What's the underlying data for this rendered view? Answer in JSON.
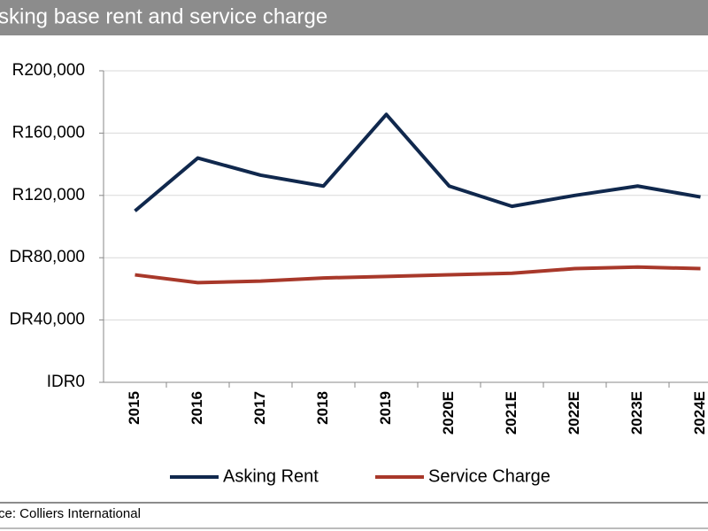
{
  "chart_data": {
    "type": "line",
    "title": "sking base rent and service charge",
    "source": "ce: Colliers International",
    "categories": [
      "2015",
      "2016",
      "2017",
      "2018",
      "2019",
      "2020E",
      "2021E",
      "2022E",
      "2023E",
      "2024E"
    ],
    "series": [
      {
        "name": "Asking Rent",
        "color": "#10284d",
        "values": [
          110000,
          144000,
          133000,
          126000,
          172000,
          126000,
          113000,
          120000,
          126000,
          119000
        ]
      },
      {
        "name": "Service Charge",
        "color": "#a8382a",
        "values": [
          69000,
          64000,
          65000,
          67000,
          68000,
          69000,
          70000,
          73000,
          74000,
          73000
        ]
      }
    ],
    "ylim": [
      0,
      200000
    ],
    "yticks": [
      {
        "value": 0,
        "label": "IDR0"
      },
      {
        "value": 40000,
        "label": "DR40,000"
      },
      {
        "value": 80000,
        "label": "DR80,000"
      },
      {
        "value": 120000,
        "label": "R120,000"
      },
      {
        "value": 160000,
        "label": "R160,000"
      },
      {
        "value": 200000,
        "label": "R200,000"
      }
    ],
    "grid": true,
    "legend": "bottom"
  }
}
